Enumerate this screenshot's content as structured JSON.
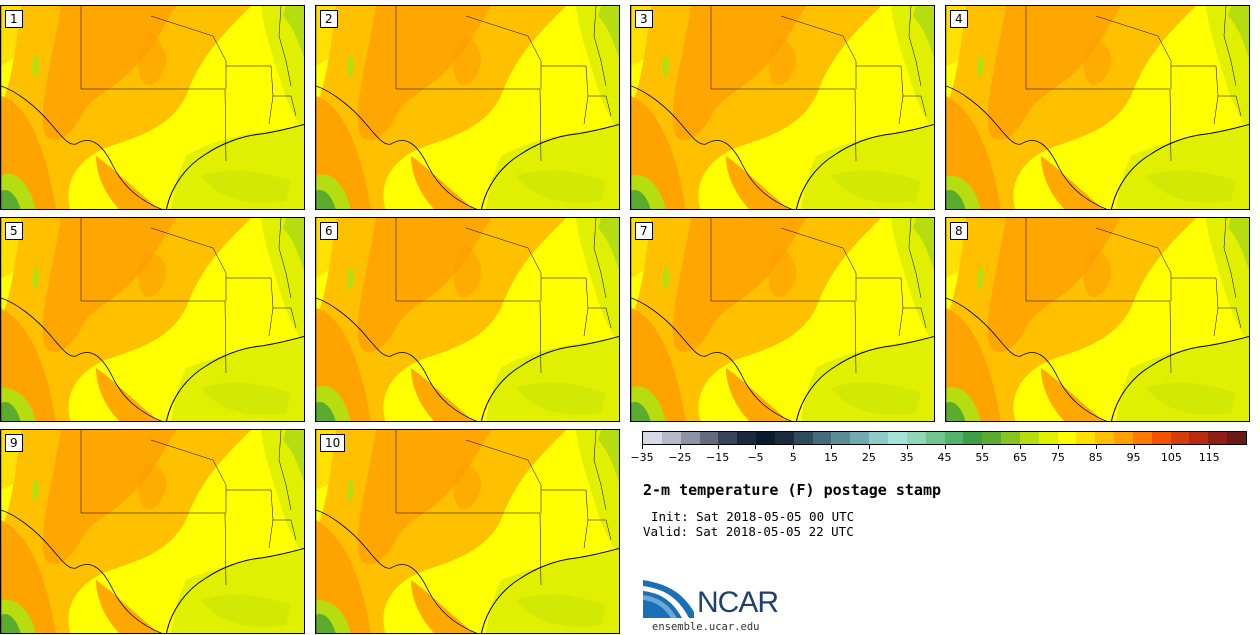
{
  "stamps": [
    {
      "label": "1"
    },
    {
      "label": "2"
    },
    {
      "label": "3"
    },
    {
      "label": "4"
    },
    {
      "label": "5"
    },
    {
      "label": "6"
    },
    {
      "label": "7"
    },
    {
      "label": "8"
    },
    {
      "label": "9"
    },
    {
      "label": "10"
    }
  ],
  "colorbar": {
    "colors": [
      "#d8dbe6",
      "#b6bac7",
      "#8e93a3",
      "#646b7d",
      "#39435a",
      "#1c2740",
      "#0c1a2e",
      "#1b2a3c",
      "#2f4a5c",
      "#436c7c",
      "#5a8d98",
      "#72aab2",
      "#8fc9c8",
      "#a3e3d8",
      "#8fd7b6",
      "#70c68f",
      "#54b36a",
      "#3e9e44",
      "#5aab2e",
      "#86c41f",
      "#b6dd10",
      "#e1f000",
      "#ffff00",
      "#ffe000",
      "#ffc000",
      "#ffa000",
      "#ff7a00",
      "#f25300",
      "#d63b0c",
      "#b82a12",
      "#8f1e14",
      "#6a1a14"
    ],
    "ticks": [
      "−35",
      "−25",
      "−15",
      "−5",
      "5",
      "15",
      "25",
      "35",
      "45",
      "55",
      "65",
      "75",
      "85",
      "95",
      "105",
      "115"
    ]
  },
  "title": "2-m temperature (F) postage stamp",
  "init": "Init: Sat 2018-05-05 00 UTC",
  "valid": "Valid: Sat 2018-05-05 22 UTC",
  "logo": {
    "brand": "NCAR",
    "site": "ensemble.ucar.edu",
    "color": "#1f3f6e"
  },
  "fieldColors": {
    "hot": "#ff9e00",
    "warm": "#ffc000",
    "mild": "#ffe000",
    "base": "#ffff00",
    "cool": "#e1f000",
    "green": "#b6dd10",
    "darkgreen": "#5aab2e"
  }
}
